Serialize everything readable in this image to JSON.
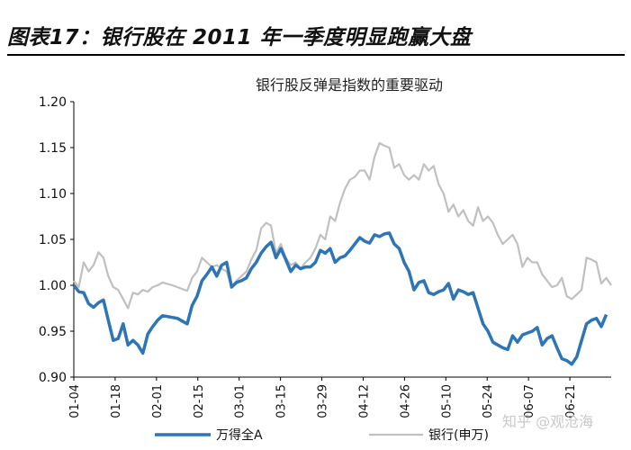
{
  "figure": {
    "title": "图表17：银行股在 2011 年一季度明显跑赢大盘",
    "watermark": "知乎 @观沧海"
  },
  "chart_data": {
    "type": "line",
    "title": "银行股反弹是指数的重要驱动",
    "xlabel": "",
    "ylabel": "",
    "ylim": [
      0.9,
      1.2
    ],
    "yticks": [
      "0.90",
      "0.95",
      "1.00",
      "1.05",
      "1.10",
      "1.15",
      "1.20"
    ],
    "xticks": [
      "01-04",
      "01-18",
      "02-01",
      "02-15",
      "03-01",
      "03-15",
      "03-29",
      "04-12",
      "04-26",
      "05-10",
      "05-24",
      "06-07",
      "06-21"
    ],
    "grid": false,
    "legend": "bottom",
    "colors": {
      "series_a": "#2e75b6",
      "series_b": "#c0c0c0"
    },
    "series": [
      {
        "name": "万得全A",
        "values": [
          [
            0,
            1.0
          ],
          [
            1,
            0.993
          ],
          [
            2,
            0.992
          ],
          [
            3,
            0.98
          ],
          [
            4,
            0.976
          ],
          [
            5,
            0.981
          ],
          [
            6,
            0.984
          ],
          [
            7,
            0.962
          ],
          [
            8,
            0.94
          ],
          [
            9,
            0.942
          ],
          [
            10,
            0.958
          ],
          [
            11,
            0.935
          ],
          [
            12,
            0.94
          ],
          [
            13,
            0.935
          ],
          [
            14,
            0.926
          ],
          [
            15,
            0.947
          ],
          [
            16,
            0.955
          ],
          [
            17,
            0.962
          ],
          [
            18,
            0.967
          ],
          [
            20,
            0.965
          ],
          [
            21,
            0.964
          ],
          [
            22,
            0.961
          ],
          [
            23,
            0.958
          ],
          [
            24,
            0.978
          ],
          [
            25,
            0.988
          ],
          [
            26,
            1.005
          ],
          [
            27,
            1.012
          ],
          [
            28,
            1.02
          ],
          [
            29,
            1.01
          ],
          [
            30,
            1.022
          ],
          [
            31,
            1.025
          ],
          [
            32,
            0.998
          ],
          [
            33,
            1.003
          ],
          [
            34,
            1.005
          ],
          [
            35,
            1.008
          ],
          [
            36,
            1.018
          ],
          [
            37,
            1.025
          ],
          [
            38,
            1.035
          ],
          [
            39,
            1.042
          ],
          [
            40,
            1.047
          ],
          [
            41,
            1.03
          ],
          [
            42,
            1.04
          ],
          [
            43,
            1.028
          ],
          [
            44,
            1.015
          ],
          [
            45,
            1.022
          ],
          [
            46,
            1.018
          ],
          [
            47,
            1.02
          ],
          [
            48,
            1.02
          ],
          [
            49,
            1.025
          ],
          [
            50,
            1.038
          ],
          [
            51,
            1.035
          ],
          [
            52,
            1.04
          ],
          [
            53,
            1.025
          ],
          [
            54,
            1.03
          ],
          [
            55,
            1.032
          ],
          [
            56,
            1.038
          ],
          [
            57,
            1.045
          ],
          [
            58,
            1.052
          ],
          [
            59,
            1.048
          ],
          [
            60,
            1.046
          ],
          [
            61,
            1.055
          ],
          [
            62,
            1.053
          ],
          [
            63,
            1.056
          ],
          [
            64,
            1.057
          ],
          [
            65,
            1.045
          ],
          [
            66,
            1.04
          ],
          [
            67,
            1.025
          ],
          [
            68,
            1.015
          ],
          [
            69,
            0.995
          ],
          [
            70,
            1.003
          ],
          [
            71,
            1.005
          ],
          [
            72,
            0.992
          ],
          [
            73,
            0.99
          ],
          [
            74,
            0.993
          ],
          [
            75,
            0.995
          ],
          [
            76,
            1.002
          ],
          [
            77,
            0.985
          ],
          [
            78,
            0.995
          ],
          [
            79,
            0.993
          ],
          [
            80,
            0.99
          ],
          [
            81,
            0.992
          ],
          [
            82,
            0.975
          ],
          [
            83,
            0.958
          ],
          [
            84,
            0.95
          ],
          [
            85,
            0.938
          ],
          [
            86,
            0.935
          ],
          [
            87,
            0.932
          ],
          [
            88,
            0.93
          ],
          [
            89,
            0.945
          ],
          [
            90,
            0.938
          ],
          [
            91,
            0.946
          ],
          [
            92,
            0.948
          ],
          [
            93,
            0.95
          ],
          [
            94,
            0.954
          ],
          [
            95,
            0.935
          ],
          [
            96,
            0.942
          ],
          [
            97,
            0.945
          ],
          [
            98,
            0.932
          ],
          [
            99,
            0.92
          ],
          [
            100,
            0.918
          ],
          [
            101,
            0.914
          ],
          [
            102,
            0.922
          ],
          [
            103,
            0.94
          ],
          [
            104,
            0.958
          ],
          [
            105,
            0.962
          ],
          [
            106,
            0.964
          ],
          [
            107,
            0.955
          ],
          [
            108,
            0.968
          ]
        ]
      },
      {
        "name": "银行(申万)",
        "values": [
          [
            0,
            1.005
          ],
          [
            1,
            0.998
          ],
          [
            2,
            1.025
          ],
          [
            3,
            1.015
          ],
          [
            4,
            1.022
          ],
          [
            5,
            1.036
          ],
          [
            6,
            1.03
          ],
          [
            7,
            1.01
          ],
          [
            8,
            0.998
          ],
          [
            9,
            0.995
          ],
          [
            10,
            0.985
          ],
          [
            11,
            0.975
          ],
          [
            12,
            0.992
          ],
          [
            13,
            0.99
          ],
          [
            14,
            0.995
          ],
          [
            15,
            0.993
          ],
          [
            16,
            0.998
          ],
          [
            17,
            1.0
          ],
          [
            18,
            1.003
          ],
          [
            20,
            1.0
          ],
          [
            21,
            0.998
          ],
          [
            22,
            0.996
          ],
          [
            23,
            0.994
          ],
          [
            24,
            1.008
          ],
          [
            25,
            1.015
          ],
          [
            26,
            1.03
          ],
          [
            27,
            1.025
          ],
          [
            28,
            1.02
          ],
          [
            29,
            1.022
          ],
          [
            30,
            1.018
          ],
          [
            31,
            1.015
          ],
          [
            32,
            0.998
          ],
          [
            33,
            1.005
          ],
          [
            34,
            1.01
          ],
          [
            35,
            1.015
          ],
          [
            36,
            1.028
          ],
          [
            37,
            1.038
          ],
          [
            38,
            1.062
          ],
          [
            39,
            1.068
          ],
          [
            40,
            1.065
          ],
          [
            41,
            1.035
          ],
          [
            42,
            1.045
          ],
          [
            43,
            1.03
          ],
          [
            44,
            1.022
          ],
          [
            45,
            1.025
          ],
          [
            46,
            1.018
          ],
          [
            47,
            1.025
          ],
          [
            48,
            1.03
          ],
          [
            49,
            1.04
          ],
          [
            50,
            1.055
          ],
          [
            51,
            1.05
          ],
          [
            52,
            1.075
          ],
          [
            53,
            1.07
          ],
          [
            54,
            1.09
          ],
          [
            55,
            1.105
          ],
          [
            56,
            1.115
          ],
          [
            57,
            1.118
          ],
          [
            58,
            1.125
          ],
          [
            59,
            1.125
          ],
          [
            60,
            1.115
          ],
          [
            61,
            1.14
          ],
          [
            62,
            1.155
          ],
          [
            63,
            1.152
          ],
          [
            64,
            1.15
          ],
          [
            65,
            1.128
          ],
          [
            66,
            1.132
          ],
          [
            67,
            1.12
          ],
          [
            68,
            1.115
          ],
          [
            69,
            1.12
          ],
          [
            70,
            1.115
          ],
          [
            71,
            1.132
          ],
          [
            72,
            1.125
          ],
          [
            73,
            1.13
          ],
          [
            74,
            1.11
          ],
          [
            75,
            1.1
          ],
          [
            76,
            1.08
          ],
          [
            77,
            1.088
          ],
          [
            78,
            1.075
          ],
          [
            79,
            1.082
          ],
          [
            80,
            1.07
          ],
          [
            81,
            1.065
          ],
          [
            82,
            1.085
          ],
          [
            83,
            1.07
          ],
          [
            84,
            1.075
          ],
          [
            85,
            1.068
          ],
          [
            86,
            1.055
          ],
          [
            87,
            1.045
          ],
          [
            88,
            1.05
          ],
          [
            89,
            1.055
          ],
          [
            90,
            1.045
          ],
          [
            91,
            1.02
          ],
          [
            92,
            1.03
          ],
          [
            93,
            1.025
          ],
          [
            94,
            1.025
          ],
          [
            95,
            1.012
          ],
          [
            96,
            1.005
          ],
          [
            97,
            0.998
          ],
          [
            98,
            1.0
          ],
          [
            99,
            1.008
          ],
          [
            100,
            0.988
          ],
          [
            101,
            0.985
          ],
          [
            102,
            0.99
          ],
          [
            103,
            0.995
          ],
          [
            104,
            1.03
          ],
          [
            105,
            1.028
          ],
          [
            106,
            1.025
          ],
          [
            107,
            1.002
          ],
          [
            108,
            1.008
          ],
          [
            109,
            1.0
          ]
        ]
      }
    ]
  }
}
